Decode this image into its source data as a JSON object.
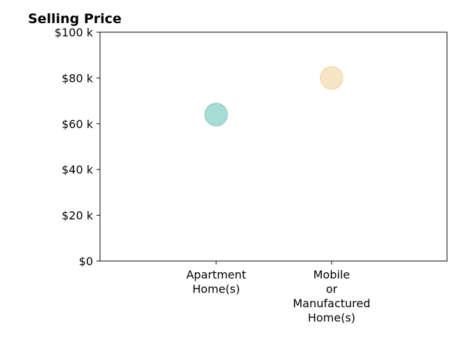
{
  "chart_data": {
    "type": "scatter",
    "title": "Selling Price",
    "xlabel": "",
    "ylabel": "",
    "categories": [
      "Apartment Home(s)",
      "Mobile or Manufactured Home(s)"
    ],
    "category_lines": [
      [
        "Apartment",
        "Home(s)"
      ],
      [
        "Mobile",
        "or",
        "Manufactured",
        "Home(s)"
      ]
    ],
    "values": [
      64000,
      80000
    ],
    "point_colors": [
      "#a8dcd6",
      "#f7e6c4"
    ],
    "point_edge_colors": [
      "#8fcfc8",
      "#f2d9ad"
    ],
    "ylim": [
      0,
      100000
    ],
    "yticks": [
      0,
      20000,
      40000,
      60000,
      80000,
      100000
    ],
    "ytick_labels": [
      "$0",
      "$20 k",
      "$40 k",
      "$60 k",
      "$80 k",
      "$100 k"
    ],
    "grid": false,
    "legend": "none"
  }
}
